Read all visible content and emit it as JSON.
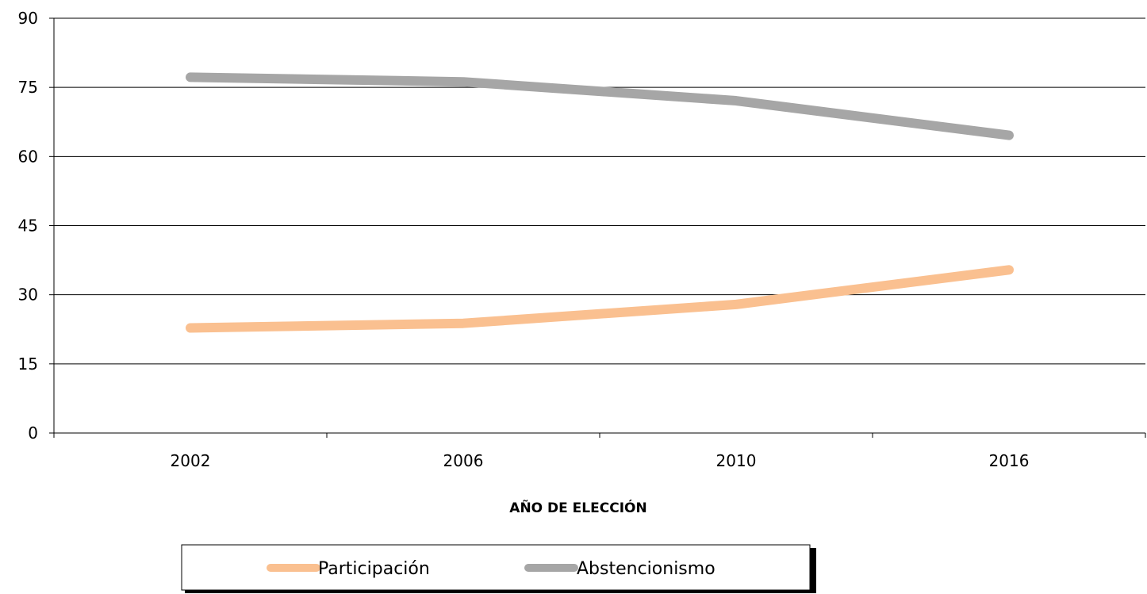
{
  "chart_data": {
    "type": "line",
    "categories": [
      "2002",
      "2006",
      "2010",
      "2016"
    ],
    "series": [
      {
        "name": "Participación",
        "values": [
          22.8,
          23.8,
          27.9,
          35.4
        ],
        "color": "#FAC090"
      },
      {
        "name": "Abstencionismo",
        "values": [
          77.2,
          76.2,
          72.1,
          64.6
        ],
        "color": "#A6A6A6"
      }
    ],
    "title": "",
    "xlabel": "AÑO DE ELECCIÓN",
    "ylabel": "",
    "ylim": [
      0,
      90
    ],
    "yticks": [
      "0",
      "15",
      "30",
      "45",
      "60",
      "75",
      "90"
    ],
    "grid": "horizontal",
    "legend_position": "bottom"
  }
}
